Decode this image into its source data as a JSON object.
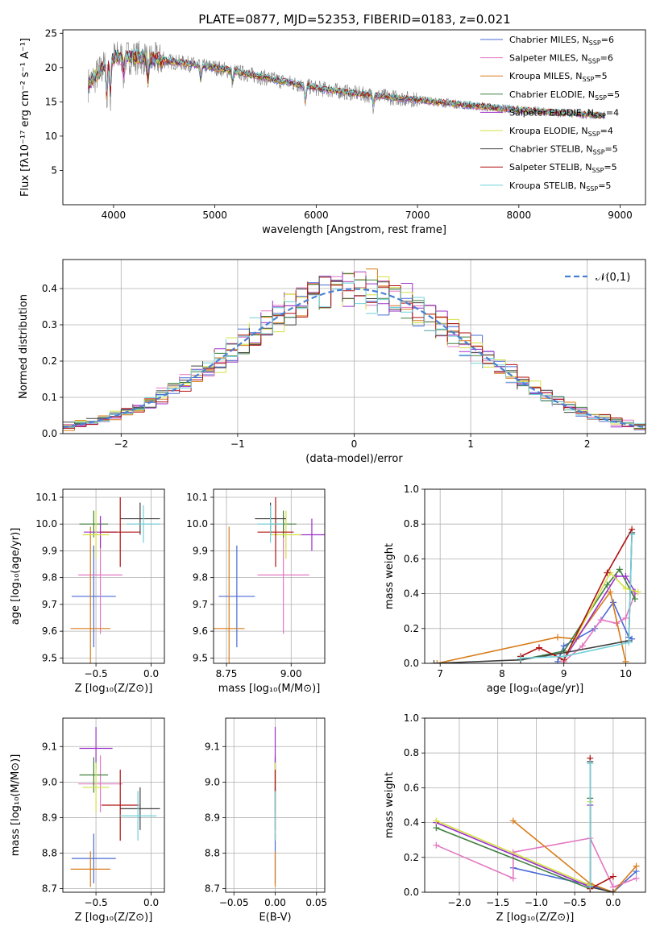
{
  "chart_data": [
    {
      "id": "spectrum",
      "type": "line",
      "title": "PLATE=0877, MJD=52353, FIBERID=0183, z=0.021",
      "xlabel": "wavelength [Angstrom, rest frame]",
      "ylabel": "Flux [fλ10⁻¹⁷ erg cm⁻² s⁻¹ A⁻¹]",
      "xlim": [
        3500,
        9250
      ],
      "ylim": [
        0,
        25.5
      ],
      "xticks": [
        4000,
        5000,
        6000,
        7000,
        8000,
        9000
      ],
      "yticks": [
        5,
        10,
        15,
        20,
        25
      ],
      "grid": false,
      "legend_position": "upper right",
      "legend": [
        {
          "name": "Chabrier MILES, N_SSP=6",
          "base": "Chabrier MILES, N",
          "sub": "SSP",
          "tail": "=6",
          "color": "#4a6bd5"
        },
        {
          "name": "Salpeter MILES, N_SSP=6",
          "base": "Salpeter MILES, N",
          "sub": "SSP",
          "tail": "=6",
          "color": "#e377c2"
        },
        {
          "name": "Kroupa MILES, N_SSP=5",
          "base": "Kroupa MILES, N",
          "sub": "SSP",
          "tail": "=5",
          "color": "#d87c1a"
        },
        {
          "name": "Chabrier ELODIE, N_SSP=5",
          "base": "Chabrier ELODIE, N",
          "sub": "SSP",
          "tail": "=5",
          "color": "#3f7f3f"
        },
        {
          "name": "Salpeter ELODIE, N_SSP=4",
          "base": "Salpeter ELODIE, N",
          "sub": "SSP",
          "tail": "=4",
          "color": "#9b30c8"
        },
        {
          "name": "Kroupa ELODIE, N_SSP=4",
          "base": "Kroupa ELODIE, N",
          "sub": "SSP",
          "tail": "=4",
          "color": "#d4e040"
        },
        {
          "name": "Chabrier STELIB, N_SSP=5",
          "base": "Chabrier STELIB, N",
          "sub": "SSP",
          "tail": "=5",
          "color": "#404040"
        },
        {
          "name": "Salpeter STELIB, N_SSP=5",
          "base": "Salpeter STELIB, N",
          "sub": "SSP",
          "tail": "=5",
          "color": "#b01010"
        },
        {
          "name": "Kroupa STELIB, N_SSP=5",
          "base": "Kroupa STELIB, N",
          "sub": "SSP",
          "tail": "=5",
          "color": "#6fd0d8"
        }
      ],
      "data_color": "#808080",
      "continuum": {
        "x": [
          3750,
          3900,
          4000,
          4200,
          4500,
          5000,
          5500,
          6000,
          6500,
          7000,
          7500,
          8000,
          8500,
          8850
        ],
        "y": [
          17.5,
          20,
          21.5,
          21.5,
          21,
          20,
          18.5,
          17,
          16,
          15.3,
          14.5,
          13.8,
          13.3,
          13
        ]
      }
    },
    {
      "id": "residuals",
      "type": "step",
      "xlabel": "(data-model)/error",
      "ylabel": "Normed distribution",
      "xlim": [
        -2.5,
        2.5
      ],
      "ylim": [
        0,
        0.48
      ],
      "xticks": [
        -2,
        -1,
        0,
        1,
        2
      ],
      "yticks": [
        0.0,
        0.1,
        0.2,
        0.3,
        0.4
      ],
      "grid": true,
      "legend_position": "upper right",
      "gaussian_label": "𝒩(0,1)",
      "gaussian_color": "#4a7fd4",
      "bin_width": 0.1
    },
    {
      "id": "age-vs-Z",
      "type": "errorbar",
      "xlabel": "Z [log₁₀(Z/Z⊙)]",
      "ylabel": "age  [log₁₀(age/yr)]",
      "xlim": [
        -0.8,
        0.12
      ],
      "ylim": [
        9.48,
        10.13
      ],
      "xticks": [
        -0.5,
        0.0
      ],
      "yticks": [
        9.5,
        9.6,
        9.7,
        9.8,
        9.9,
        10.0,
        10.1
      ],
      "grid": true,
      "points": [
        {
          "color": "#4a6bd5",
          "x": -0.52,
          "xerr": 0.2,
          "y": 9.73,
          "yerr": 0.19
        },
        {
          "color": "#e377c2",
          "x": -0.46,
          "xerr": 0.2,
          "y": 9.81,
          "yerr": 0.22
        },
        {
          "color": "#d87c1a",
          "x": -0.55,
          "xerr": 0.18,
          "y": 9.61,
          "yerr": 0.38
        },
        {
          "color": "#3f7f3f",
          "x": -0.52,
          "xerr": 0.13,
          "y": 10.0,
          "yerr": 0.05
        },
        {
          "color": "#9b30c8",
          "x": -0.46,
          "xerr": 0.15,
          "y": 9.97,
          "yerr": 0.06
        },
        {
          "color": "#d4e040",
          "x": -0.5,
          "xerr": 0.12,
          "y": 9.96,
          "yerr": 0.09
        },
        {
          "color": "#404040",
          "x": -0.1,
          "xerr": 0.18,
          "y": 10.02,
          "yerr": 0.06
        },
        {
          "color": "#b01010",
          "x": -0.28,
          "xerr": 0.18,
          "y": 9.97,
          "yerr": 0.13
        },
        {
          "color": "#6fd0d8",
          "x": -0.07,
          "xerr": 0.15,
          "y": 10.0,
          "yerr": 0.07
        }
      ]
    },
    {
      "id": "age-vs-mass",
      "type": "errorbar",
      "xlabel": "mass [log₁₀(M/M⊙)]",
      "ylabel": "",
      "xlim": [
        8.7,
        9.13
      ],
      "ylim": [
        9.48,
        10.13
      ],
      "xticks": [
        8.75,
        9.0
      ],
      "yticks": [
        9.5,
        9.6,
        9.7,
        9.8,
        9.9,
        10.0,
        10.1
      ],
      "grid": true,
      "points": [
        {
          "color": "#4a6bd5",
          "x": 8.79,
          "xerr": 0.07,
          "y": 9.73,
          "yerr": 0.19
        },
        {
          "color": "#e377c2",
          "x": 8.97,
          "xerr": 0.1,
          "y": 9.81,
          "yerr": 0.22
        },
        {
          "color": "#d87c1a",
          "x": 8.76,
          "xerr": 0.06,
          "y": 9.61,
          "yerr": 0.38
        },
        {
          "color": "#3f7f3f",
          "x": 8.97,
          "xerr": 0.05,
          "y": 10.0,
          "yerr": 0.05
        },
        {
          "color": "#9b30c8",
          "x": 9.08,
          "xerr": 0.05,
          "y": 9.96,
          "yerr": 0.06
        },
        {
          "color": "#d4e040",
          "x": 8.98,
          "xerr": 0.06,
          "y": 9.96,
          "yerr": 0.09
        },
        {
          "color": "#404040",
          "x": 8.92,
          "xerr": 0.06,
          "y": 10.02,
          "yerr": 0.06
        },
        {
          "color": "#b01010",
          "x": 8.94,
          "xerr": 0.07,
          "y": 9.97,
          "yerr": 0.13
        },
        {
          "color": "#6fd0d8",
          "x": 8.92,
          "xerr": 0.05,
          "y": 10.0,
          "yerr": 0.07
        }
      ]
    },
    {
      "id": "massweight-vs-age",
      "type": "line",
      "xlabel": "age  [log₁₀(age/yr)]",
      "ylabel": "mass weight",
      "xlim": [
        6.75,
        10.32
      ],
      "ylim": [
        0,
        1
      ],
      "xticks": [
        7,
        8,
        9,
        10
      ],
      "yticks": [
        0.0,
        0.2,
        0.4,
        0.6,
        0.8,
        1.0
      ],
      "grid": true,
      "series": [
        {
          "color": "#4a6bd5",
          "x": [
            8.9,
            9.0,
            9.5,
            9.8,
            10.05,
            10.1
          ],
          "y": [
            0.01,
            0.1,
            0.2,
            0.35,
            0.15,
            0.14
          ]
        },
        {
          "color": "#e377c2",
          "x": [
            9.0,
            9.3,
            9.6,
            9.85,
            10.0,
            10.15
          ],
          "y": [
            0.01,
            0.1,
            0.25,
            0.23,
            0.26,
            0.4
          ]
        },
        {
          "color": "#d87c1a",
          "x": [
            6.95,
            8.9,
            9.2,
            9.75,
            10.0
          ],
          "y": [
            0.0,
            0.15,
            0.14,
            0.41,
            0.01
          ]
        },
        {
          "color": "#3f7f3f",
          "x": [
            8.3,
            9.0,
            9.7,
            9.9,
            10.15
          ],
          "y": [
            0.02,
            0.07,
            0.45,
            0.54,
            0.37
          ]
        },
        {
          "color": "#9b30c8",
          "x": [
            9.0,
            9.85,
            10.0,
            10.15
          ],
          "y": [
            0.02,
            0.5,
            0.5,
            0.41
          ]
        },
        {
          "color": "#d4e040",
          "x": [
            9.0,
            9.75,
            10.0,
            10.2
          ],
          "y": [
            0.02,
            0.52,
            0.43,
            0.41
          ]
        },
        {
          "color": "#404040",
          "x": [
            6.9,
            8.3,
            9.0,
            10.05,
            10.1
          ],
          "y": [
            0.0,
            0.02,
            0.06,
            0.13,
            0.75
          ]
        },
        {
          "color": "#b01010",
          "x": [
            8.3,
            8.6,
            9.0,
            9.7,
            10.1
          ],
          "y": [
            0.04,
            0.09,
            0.02,
            0.52,
            0.77
          ]
        },
        {
          "color": "#6fd0d8",
          "x": [
            8.3,
            9.0,
            10.05,
            10.1
          ],
          "y": [
            0.03,
            0.04,
            0.12,
            0.74
          ]
        }
      ]
    },
    {
      "id": "mass-vs-Z",
      "type": "errorbar",
      "xlabel": "Z [log₁₀(Z/Z⊙)]",
      "ylabel": "mass [log₁₀(M/M⊙)]",
      "xlim": [
        -0.8,
        0.12
      ],
      "ylim": [
        8.69,
        9.18
      ],
      "xticks": [
        -0.5,
        0.0
      ],
      "yticks": [
        8.7,
        8.8,
        8.9,
        9.0,
        9.1
      ],
      "grid": true,
      "points": [
        {
          "color": "#4a6bd5",
          "x": -0.52,
          "xerr": 0.2,
          "y": 8.785,
          "yerr": 0.07
        },
        {
          "color": "#e377c2",
          "x": -0.46,
          "xerr": 0.2,
          "y": 8.995,
          "yerr": 0.08
        },
        {
          "color": "#d87c1a",
          "x": -0.55,
          "xerr": 0.18,
          "y": 8.755,
          "yerr": 0.05
        },
        {
          "color": "#3f7f3f",
          "x": -0.52,
          "xerr": 0.13,
          "y": 9.02,
          "yerr": 0.05
        },
        {
          "color": "#9b30c8",
          "x": -0.5,
          "xerr": 0.15,
          "y": 9.095,
          "yerr": 0.06
        },
        {
          "color": "#d4e040",
          "x": -0.5,
          "xerr": 0.12,
          "y": 8.985,
          "yerr": 0.07
        },
        {
          "color": "#404040",
          "x": -0.1,
          "xerr": 0.18,
          "y": 8.925,
          "yerr": 0.06
        },
        {
          "color": "#b01010",
          "x": -0.28,
          "xerr": 0.17,
          "y": 8.935,
          "yerr": 0.1
        },
        {
          "color": "#6fd0d8",
          "x": -0.12,
          "xerr": 0.17,
          "y": 8.905,
          "yerr": 0.07
        }
      ]
    },
    {
      "id": "mass-vs-ebv",
      "type": "errorbar",
      "xlabel": "E(B-V)",
      "ylabel": "",
      "xlim": [
        -0.06,
        0.06
      ],
      "ylim": [
        8.69,
        9.18
      ],
      "xticks": [
        -0.05,
        0.0,
        0.05
      ],
      "yticks": [
        8.7,
        8.8,
        8.9,
        9.0,
        9.1
      ],
      "grid": true,
      "points": [
        {
          "color": "#4a6bd5",
          "x": 0.0,
          "xerr": 0.0,
          "y": 8.785,
          "yerr": 0.07
        },
        {
          "color": "#e377c2",
          "x": 0.0,
          "xerr": 0.0,
          "y": 8.995,
          "yerr": 0.08
        },
        {
          "color": "#d87c1a",
          "x": 0.0,
          "xerr": 0.0,
          "y": 8.755,
          "yerr": 0.05
        },
        {
          "color": "#3f7f3f",
          "x": 0.0,
          "xerr": 0.0,
          "y": 9.02,
          "yerr": 0.05
        },
        {
          "color": "#9b30c8",
          "x": 0.0,
          "xerr": 0.0,
          "y": 9.095,
          "yerr": 0.06
        },
        {
          "color": "#d4e040",
          "x": 0.0,
          "xerr": 0.0,
          "y": 8.985,
          "yerr": 0.07
        },
        {
          "color": "#404040",
          "x": 0.0,
          "xerr": 0.0,
          "y": 8.925,
          "yerr": 0.06
        },
        {
          "color": "#b01010",
          "x": 0.0,
          "xerr": 0.0,
          "y": 8.935,
          "yerr": 0.1
        },
        {
          "color": "#6fd0d8",
          "x": 0.0,
          "xerr": 0.0,
          "y": 8.905,
          "yerr": 0.07
        }
      ]
    },
    {
      "id": "massweight-vs-Z",
      "type": "line",
      "xlabel": "Z [log₁₀(Z/Z⊙)]",
      "ylabel": "mass weight",
      "xlim": [
        -2.45,
        0.42
      ],
      "ylim": [
        0,
        1
      ],
      "xticks": [
        -2.0,
        -1.5,
        -1.0,
        -0.5,
        0.0
      ],
      "yticks": [
        0.0,
        0.2,
        0.4,
        0.6,
        0.8,
        1.0
      ],
      "grid": true,
      "series": [
        {
          "color": "#4a6bd5",
          "x": [
            -1.3,
            -0.3,
            0.0,
            0.3
          ],
          "y": [
            0.14,
            0.04,
            0.0,
            0.12
          ]
        },
        {
          "color": "#e377c2",
          "x": [
            -2.3,
            -1.3,
            -1.3,
            -0.3,
            0.0,
            0.3
          ],
          "y": [
            0.27,
            0.08,
            0.23,
            0.31,
            0.03,
            0.08
          ]
        },
        {
          "color": "#d87c1a",
          "x": [
            -1.3,
            -0.3,
            0.0,
            0.3
          ],
          "y": [
            0.41,
            0.05,
            0.0,
            0.15
          ]
        },
        {
          "color": "#3f7f3f",
          "x": [
            -2.3,
            -0.3,
            -0.3
          ],
          "y": [
            0.37,
            0.02,
            0.54
          ]
        },
        {
          "color": "#9b30c8",
          "x": [
            -2.3,
            -0.3,
            -0.3
          ],
          "y": [
            0.4,
            0.03,
            0.5
          ]
        },
        {
          "color": "#d4e040",
          "x": [
            -2.3,
            -0.3,
            -0.3
          ],
          "y": [
            0.41,
            0.04,
            0.52
          ]
        },
        {
          "color": "#404040",
          "x": [
            -0.3,
            -0.3,
            0.0
          ],
          "y": [
            0.75,
            0.03,
            0.0
          ]
        },
        {
          "color": "#b01010",
          "x": [
            -0.3,
            -0.3,
            0.0
          ],
          "y": [
            0.77,
            0.02,
            0.09
          ]
        },
        {
          "color": "#6fd0d8",
          "x": [
            -0.3,
            -0.3
          ],
          "y": [
            0.74,
            0.03
          ]
        }
      ]
    }
  ]
}
